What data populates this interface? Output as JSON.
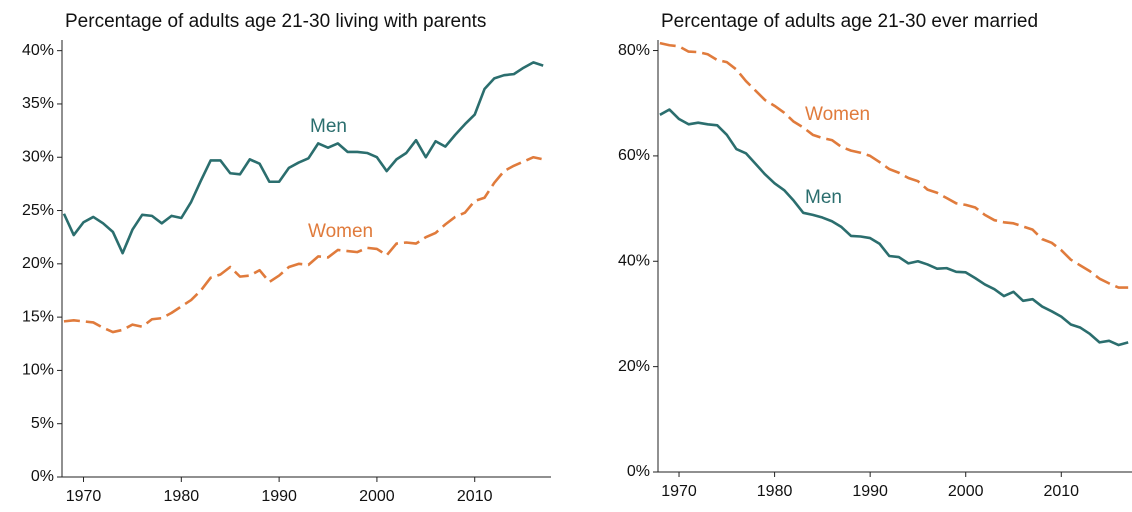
{
  "chart_data": [
    {
      "type": "line",
      "title": "Percentage of adults age 21-30 living with parents",
      "x": [
        1968,
        1969,
        1970,
        1971,
        1972,
        1973,
        1974,
        1975,
        1976,
        1977,
        1978,
        1979,
        1980,
        1981,
        1982,
        1983,
        1984,
        1985,
        1986,
        1987,
        1988,
        1989,
        1990,
        1991,
        1992,
        1993,
        1994,
        1995,
        1996,
        1997,
        1998,
        1999,
        2000,
        2001,
        2002,
        2003,
        2004,
        2005,
        2006,
        2007,
        2008,
        2009,
        2010,
        2011,
        2012,
        2013,
        2014,
        2015,
        2016,
        2017
      ],
      "series": [
        {
          "name": "Men",
          "color": "#2b6e6e",
          "values": [
            24.7,
            22.7,
            23.9,
            24.4,
            23.8,
            23.0,
            21.0,
            23.2,
            24.6,
            24.5,
            23.8,
            24.5,
            24.3,
            25.8,
            27.8,
            29.7,
            29.7,
            28.5,
            28.4,
            29.8,
            29.4,
            27.7,
            27.7,
            29.0,
            29.5,
            29.9,
            31.3,
            30.9,
            31.3,
            30.5,
            30.5,
            30.4,
            30.0,
            28.7,
            29.8,
            30.4,
            31.6,
            30.0,
            31.5,
            31.0,
            32.1,
            33.1,
            34.0,
            36.4,
            37.4,
            37.7,
            37.8,
            38.4,
            38.9,
            38.6
          ]
        },
        {
          "name": "Women",
          "color": "#e07b3c",
          "values": [
            14.6,
            14.7,
            14.6,
            14.5,
            14.0,
            13.6,
            13.8,
            14.3,
            14.1,
            14.8,
            14.9,
            15.4,
            16.0,
            16.6,
            17.5,
            18.7,
            19.0,
            19.7,
            18.8,
            18.9,
            19.4,
            18.3,
            18.9,
            19.7,
            20.0,
            19.9,
            20.7,
            20.6,
            21.3,
            21.2,
            21.1,
            21.5,
            21.4,
            20.8,
            21.9,
            22.0,
            21.9,
            22.5,
            22.9,
            23.7,
            24.4,
            24.8,
            25.9,
            26.2,
            27.6,
            28.7,
            29.2,
            29.6,
            30.0,
            29.8
          ]
        }
      ],
      "xlim": [
        1967.8,
        2017.8
      ],
      "xticks": [
        1970,
        1980,
        1990,
        2000,
        2010
      ],
      "ylim": [
        0,
        41
      ],
      "yticks": [
        {
          "value": 0,
          "label": "0%"
        },
        {
          "value": 5,
          "label": "5%"
        },
        {
          "value": 10,
          "label": "10%"
        },
        {
          "value": 15,
          "label": "15%"
        },
        {
          "value": 20,
          "label": "20%"
        },
        {
          "value": 25,
          "label": "25%"
        },
        {
          "value": 30,
          "label": "30%"
        },
        {
          "value": 35,
          "label": "35%"
        },
        {
          "value": 40,
          "label": "40%"
        }
      ]
    },
    {
      "type": "line",
      "title": "Percentage of adults age 21-30 ever married",
      "x": [
        1968,
        1969,
        1970,
        1971,
        1972,
        1973,
        1974,
        1975,
        1976,
        1977,
        1978,
        1979,
        1980,
        1981,
        1982,
        1983,
        1984,
        1985,
        1986,
        1987,
        1988,
        1989,
        1990,
        1991,
        1992,
        1993,
        1994,
        1995,
        1996,
        1997,
        1998,
        1999,
        2000,
        2001,
        2002,
        2003,
        2004,
        2005,
        2006,
        2007,
        2008,
        2009,
        2010,
        2011,
        2012,
        2013,
        2014,
        2015,
        2016,
        2017
      ],
      "series": [
        {
          "name": "Men",
          "color": "#2b6e6e",
          "values": [
            67.8,
            68.8,
            67.0,
            66.0,
            66.3,
            66.0,
            65.8,
            64.0,
            61.3,
            60.5,
            58.5,
            56.5,
            54.8,
            53.5,
            51.5,
            49.2,
            48.8,
            48.3,
            47.6,
            46.5,
            44.8,
            44.7,
            44.4,
            43.3,
            41.0,
            40.8,
            39.6,
            40.0,
            39.4,
            38.6,
            38.7,
            38.0,
            37.9,
            36.8,
            35.6,
            34.7,
            33.4,
            34.2,
            32.5,
            32.8,
            31.4,
            30.5,
            29.5,
            28.0,
            27.4,
            26.2,
            24.6,
            24.9,
            24.1,
            24.6
          ]
        },
        {
          "name": "Women",
          "color": "#e07b3c",
          "values": [
            81.4,
            81.0,
            80.8,
            79.8,
            79.7,
            79.3,
            78.2,
            77.8,
            76.4,
            74.2,
            72.4,
            70.6,
            69.5,
            68.2,
            66.5,
            65.4,
            64.0,
            63.4,
            63.0,
            61.7,
            61.0,
            60.6,
            60.0,
            58.8,
            57.5,
            56.8,
            55.8,
            55.2,
            53.6,
            53.0,
            52.0,
            51.0,
            50.7,
            50.2,
            48.8,
            47.8,
            47.4,
            47.2,
            46.6,
            46.0,
            44.2,
            43.5,
            42.1,
            40.3,
            39.2,
            38.1,
            36.7,
            35.8,
            35.0,
            35.0
          ]
        }
      ],
      "xlim": [
        1967.8,
        2017.4
      ],
      "xticks": [
        1970,
        1980,
        1990,
        2000,
        2010
      ],
      "ylim": [
        0,
        82
      ],
      "yticks": [
        {
          "value": 0,
          "label": "0%"
        },
        {
          "value": 20,
          "label": "20%"
        },
        {
          "value": 40,
          "label": "40%"
        },
        {
          "value": 60,
          "label": "60%"
        },
        {
          "value": 80,
          "label": "80%"
        }
      ]
    }
  ]
}
